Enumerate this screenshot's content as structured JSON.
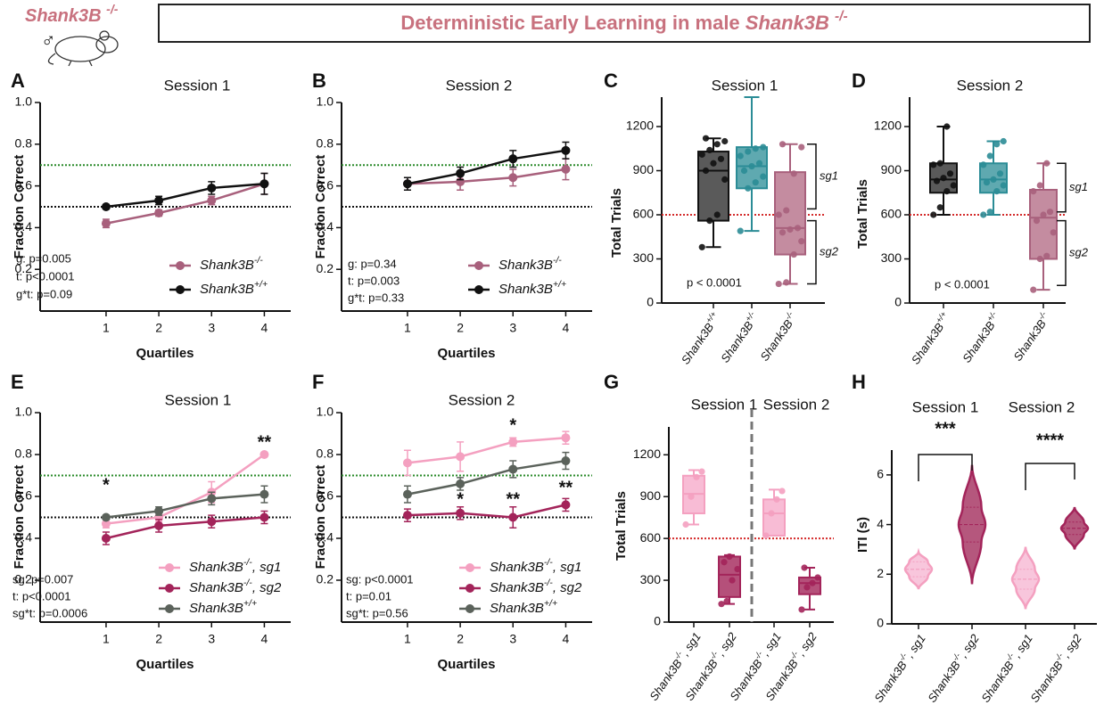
{
  "header": {
    "label": "Shank3B -/-",
    "symbol": "♂",
    "title": "Deterministic Early Learning in male Shank3B -/-"
  },
  "chart_data": [
    {
      "type": "line",
      "panel": "A",
      "title": "Session 1",
      "x_label": "Quartiles",
      "y_label": "Fraction Correct",
      "x": [
        1,
        2,
        3,
        4
      ],
      "xlim": [
        -0.25,
        4.5
      ],
      "xticks": [
        1,
        2,
        3,
        4
      ],
      "ylim": [
        0,
        1
      ],
      "yticks": [
        0.2,
        0.4,
        0.6,
        0.8,
        {
          "value": 1,
          "label": "1.0"
        }
      ],
      "reference_lines": [
        {
          "value": 0.7,
          "color": "#2a8a2a"
        },
        {
          "value": 0.5,
          "color": "#111111"
        }
      ],
      "series": [
        {
          "name": "Shank3B-/-",
          "color": "#a8607c",
          "values": [
            0.42,
            0.47,
            0.53,
            0.61
          ],
          "errors": [
            0.02,
            0.015,
            0.02,
            0.05
          ]
        },
        {
          "name": "Shank3B+/+",
          "color": "#111111",
          "values": [
            0.5,
            0.53,
            0.59,
            0.61
          ],
          "errors": [
            0.01,
            0.02,
            0.03,
            0.05
          ]
        }
      ],
      "stats": [
        "g: p=0.005",
        "t: p<0.0001",
        "g*t: p=0.09"
      ]
    },
    {
      "type": "line",
      "panel": "B",
      "title": "Session 2",
      "x_label": "Quartiles",
      "y_label": "Fraction Correct",
      "x": [
        1,
        2,
        3,
        4
      ],
      "xlim": [
        -0.25,
        4.5
      ],
      "xticks": [
        1,
        2,
        3,
        4
      ],
      "ylim": [
        0,
        1
      ],
      "yticks": [
        0.2,
        0.4,
        0.6,
        0.8,
        {
          "value": 1,
          "label": "1.0"
        }
      ],
      "reference_lines": [
        {
          "value": 0.7,
          "color": "#2a8a2a"
        },
        {
          "value": 0.5,
          "color": "#111111"
        }
      ],
      "series": [
        {
          "name": "Shank3B-/-",
          "color": "#a8607c",
          "values": [
            0.61,
            0.62,
            0.64,
            0.68
          ],
          "errors": [
            0.03,
            0.04,
            0.04,
            0.05
          ]
        },
        {
          "name": "Shank3B+/+",
          "color": "#111111",
          "values": [
            0.61,
            0.66,
            0.73,
            0.77
          ],
          "errors": [
            0.03,
            0.03,
            0.04,
            0.04
          ]
        }
      ],
      "stats": [
        "g: p=0.34",
        "t: p=0.003",
        "g*t: p=0.33"
      ]
    },
    {
      "type": "box",
      "panel": "C",
      "title": "Session 1",
      "y_label": "Total Trials",
      "categories": [
        "Shank3B+/+",
        "Shank3B+/-",
        "Shank3B-/-"
      ],
      "ylim": [
        0,
        1400
      ],
      "yticks": [
        0,
        300,
        600,
        900,
        1200
      ],
      "reference_lines": [
        {
          "value": 600,
          "color": "#d42a2a"
        }
      ],
      "boxes": [
        {
          "color": "#111111",
          "fill": "#5a5a5a",
          "min": 380,
          "q1": 560,
          "median": 900,
          "q3": 1030,
          "max": 1120,
          "points": [
            380,
            560,
            600,
            840,
            900,
            950,
            980,
            1010,
            1040,
            1080,
            1100,
            1120
          ]
        },
        {
          "color": "#2b8c96",
          "fill": "#5fa9b0",
          "min": 490,
          "q1": 780,
          "median": 930,
          "q3": 1060,
          "max": 1400,
          "points": [
            490,
            780,
            820,
            860,
            900,
            930,
            950,
            1000,
            1030,
            1050,
            1060
          ]
        },
        {
          "color": "#a8607c",
          "fill": "#c48ca0",
          "min": 130,
          "q1": 330,
          "median": 510,
          "q3": 890,
          "max": 1080,
          "points": [
            130,
            140,
            330,
            420,
            480,
            500,
            510,
            600,
            630,
            880,
            1060,
            1080
          ]
        }
      ],
      "brackets": [
        {
          "label": "sg1",
          "range": [
            640,
            1080
          ]
        },
        {
          "label": "sg2",
          "range": [
            130,
            560
          ]
        }
      ],
      "stats": [
        "p < 0.0001"
      ]
    },
    {
      "type": "box",
      "panel": "D",
      "title": "Session 2",
      "y_label": "Total Trials",
      "categories": [
        "Shank3B+/+",
        "Shank3B+/-",
        "Shank3B-/-"
      ],
      "ylim": [
        0,
        1400
      ],
      "yticks": [
        0,
        300,
        600,
        900,
        1200
      ],
      "reference_lines": [
        {
          "value": 600,
          "color": "#d42a2a"
        }
      ],
      "boxes": [
        {
          "color": "#111111",
          "fill": "#5a5a5a",
          "min": 600,
          "q1": 750,
          "median": 840,
          "q3": 950,
          "max": 1200,
          "points": [
            600,
            650,
            760,
            800,
            830,
            850,
            880,
            940,
            950,
            1200
          ]
        },
        {
          "color": "#2b8c96",
          "fill": "#5fa9b0",
          "min": 600,
          "q1": 750,
          "median": 840,
          "q3": 950,
          "max": 1100,
          "points": [
            600,
            620,
            760,
            800,
            820,
            840,
            880,
            940,
            1000,
            1080,
            1100
          ]
        },
        {
          "color": "#a8607c",
          "fill": "#c48ca0",
          "min": 90,
          "q1": 300,
          "median": 580,
          "q3": 770,
          "max": 950,
          "points": [
            90,
            300,
            320,
            480,
            560,
            600,
            620,
            760,
            800,
            950
          ]
        }
      ],
      "brackets": [
        {
          "label": "sg1",
          "range": [
            620,
            950
          ]
        },
        {
          "label": "sg2",
          "range": [
            120,
            560
          ]
        }
      ],
      "stats": [
        "p < 0.0001"
      ]
    },
    {
      "type": "line",
      "panel": "E",
      "title": "Session 1",
      "x_label": "Quartiles",
      "y_label": "Fraction Correct",
      "x": [
        1,
        2,
        3,
        4
      ],
      "xlim": [
        -0.25,
        4.5
      ],
      "xticks": [
        1,
        2,
        3,
        4
      ],
      "ylim": [
        0,
        1
      ],
      "yticks": [
        0.2,
        0.4,
        0.6,
        0.8,
        {
          "value": 1,
          "label": "1.0"
        }
      ],
      "reference_lines": [
        {
          "value": 0.7,
          "color": "#2a8a2a"
        },
        {
          "value": 0.5,
          "color": "#111111"
        }
      ],
      "series": [
        {
          "name": "Shank3B-/-, sg1",
          "color": "#f4a0c0",
          "values": [
            0.47,
            0.5,
            0.62,
            0.8
          ],
          "errors": [
            0.02,
            0.02,
            0.05,
            0.01
          ]
        },
        {
          "name": "Shank3B-/-, sg2",
          "color": "#a3245a",
          "values": [
            0.4,
            0.46,
            0.48,
            0.5
          ],
          "errors": [
            0.03,
            0.03,
            0.03,
            0.03
          ]
        },
        {
          "name": "Shank3B+/+",
          "color": "#5b625b",
          "values": [
            0.5,
            0.53,
            0.59,
            0.61
          ],
          "errors": [
            0.01,
            0.02,
            0.03,
            0.04
          ]
        }
      ],
      "stats": [
        "sg: p=0.007",
        "t: p<0.0001",
        "sg*t: p=0.0006"
      ],
      "significance": [
        {
          "x": 1,
          "text": "*"
        },
        {
          "x": 4,
          "text": "**"
        }
      ]
    },
    {
      "type": "line",
      "panel": "F",
      "title": "Session 2",
      "x_label": "Quartiles",
      "y_label": "Fraction Correct",
      "x": [
        1,
        2,
        3,
        4
      ],
      "xlim": [
        -0.25,
        4.5
      ],
      "xticks": [
        1,
        2,
        3,
        4
      ],
      "ylim": [
        0,
        1
      ],
      "yticks": [
        0.2,
        0.4,
        0.6,
        0.8,
        {
          "value": 1,
          "label": "1.0"
        }
      ],
      "reference_lines": [
        {
          "value": 0.7,
          "color": "#2a8a2a"
        },
        {
          "value": 0.5,
          "color": "#111111"
        }
      ],
      "series": [
        {
          "name": "Shank3B-/-, sg1",
          "color": "#f4a0c0",
          "values": [
            0.76,
            0.79,
            0.86,
            0.88
          ],
          "errors": [
            0.06,
            0.07,
            0.02,
            0.03
          ]
        },
        {
          "name": "Shank3B-/-, sg2",
          "color": "#a3245a",
          "values": [
            0.51,
            0.52,
            0.5,
            0.56
          ],
          "errors": [
            0.03,
            0.03,
            0.05,
            0.03
          ]
        },
        {
          "name": "Shank3B+/+",
          "color": "#5b625b",
          "values": [
            0.61,
            0.66,
            0.73,
            0.77
          ],
          "errors": [
            0.04,
            0.03,
            0.04,
            0.04
          ]
        }
      ],
      "stats": [
        "sg: p<0.0001",
        "t: p=0.01",
        "sg*t: p=0.56"
      ],
      "significance": [
        {
          "x": 2,
          "text": "*"
        },
        {
          "x": 3,
          "text": "*"
        },
        {
          "x": 3,
          "text": "**"
        },
        {
          "x": 4,
          "text": "**"
        }
      ]
    },
    {
      "type": "box",
      "panel": "G",
      "group_titles": [
        "Session 1",
        "Session 2"
      ],
      "y_label": "Total Trials",
      "categories": [
        "Shank3B-/-, sg1",
        "Shank3B-/-, sg2",
        "Shank3B-/-, sg1",
        "Shank3B-/-, sg2"
      ],
      "ylim": [
        0,
        1400
      ],
      "yticks": [
        0,
        300,
        600,
        900,
        1200
      ],
      "reference_lines": [
        {
          "value": 600,
          "color": "#d42a2a"
        }
      ],
      "boxes": [
        {
          "color": "#f4a0c0",
          "fill": "#f8bcd5",
          "min": 700,
          "q1": 780,
          "median": 920,
          "q3": 1050,
          "max": 1090,
          "points": [
            700,
            900,
            1040,
            1080
          ]
        },
        {
          "color": "#a3245a",
          "fill": "#b5507a",
          "min": 130,
          "q1": 180,
          "median": 340,
          "q3": 470,
          "max": 480,
          "points": [
            130,
            150,
            300,
            380,
            430,
            470
          ]
        },
        {
          "color": "#f4a0c0",
          "fill": "#f8bcd5",
          "min": 620,
          "q1": 620,
          "median": 780,
          "q3": 880,
          "max": 950,
          "points": [
            620,
            780,
            880,
            940
          ]
        },
        {
          "color": "#a3245a",
          "fill": "#b5507a",
          "min": 90,
          "q1": 200,
          "median": 280,
          "q3": 320,
          "max": 390,
          "points": [
            90,
            250,
            280,
            320,
            390
          ]
        }
      ]
    },
    {
      "type": "violin",
      "panel": "H",
      "group_titles": [
        "Session 1",
        "Session 2"
      ],
      "y_label": "ITI (s)",
      "categories": [
        "Shank3B-/-, sg1",
        "Shank3B-/-, sg2",
        "Shank3B-/-, sg1",
        "Shank3B-/-, sg2"
      ],
      "ylim": [
        0,
        7
      ],
      "yticks": [
        0,
        2,
        4,
        6
      ],
      "violins": [
        {
          "color": "#f4a0c0",
          "fill": "#f8c6dc",
          "min": 1.4,
          "q1": 1.9,
          "median": 2.2,
          "q3": 2.5,
          "max": 2.9
        },
        {
          "color": "#a3245a",
          "fill": "#b5577d",
          "min": 1.6,
          "q1": 3.3,
          "median": 4.0,
          "q3": 4.7,
          "max": 6.4
        },
        {
          "color": "#f4a0c0",
          "fill": "#f8c6dc",
          "min": 0.6,
          "q1": 1.4,
          "median": 1.8,
          "q3": 2.2,
          "max": 3.1
        },
        {
          "color": "#a3245a",
          "fill": "#b5577d",
          "min": 3.0,
          "q1": 3.6,
          "median": 3.85,
          "q3": 4.1,
          "max": 4.7
        }
      ],
      "significance": [
        {
          "text": "***"
        },
        {
          "text": "****"
        }
      ]
    }
  ]
}
